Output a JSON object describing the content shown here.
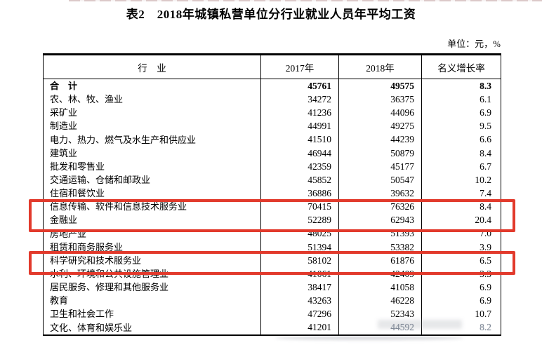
{
  "page": {
    "title": "表2　2018年城镇私营单位分行业就业人员年平均工资",
    "unit_label": "单位：元，%"
  },
  "table": {
    "columns": [
      "行　业",
      "2017年",
      "2018年",
      "名义增长率"
    ],
    "rows": [
      {
        "industry": "合　计",
        "y2017": "45761",
        "y2018": "49575",
        "growth": "8.3"
      },
      {
        "industry": "农、林、牧、渔业",
        "y2017": "34272",
        "y2018": "36375",
        "growth": "6.1"
      },
      {
        "industry": "采矿业",
        "y2017": "41236",
        "y2018": "44096",
        "growth": "6.9"
      },
      {
        "industry": "制造业",
        "y2017": "44991",
        "y2018": "49275",
        "growth": "9.5"
      },
      {
        "industry": "电力、热力、燃气及水生产和供应业",
        "y2017": "41510",
        "y2018": "44239",
        "growth": "6.6"
      },
      {
        "industry": "建筑业",
        "y2017": "46944",
        "y2018": "50879",
        "growth": "8.4"
      },
      {
        "industry": "批发和零售业",
        "y2017": "42359",
        "y2018": "45177",
        "growth": "6.7"
      },
      {
        "industry": "交通运输、仓储和邮政业",
        "y2017": "45852",
        "y2018": "50547",
        "growth": "10.2"
      },
      {
        "industry": "住宿和餐饮业",
        "y2017": "36886",
        "y2018": "39632",
        "growth": "7.4"
      },
      {
        "industry": "信息传输、软件和信息技术服务业",
        "y2017": "70415",
        "y2018": "76326",
        "growth": "8.4"
      },
      {
        "industry": "金融业",
        "y2017": "52289",
        "y2018": "62943",
        "growth": "20.4"
      },
      {
        "industry": "房地产业",
        "y2017": "48025",
        "y2018": "51393",
        "growth": "7.0"
      },
      {
        "industry": "租赁和商务服务业",
        "y2017": "51394",
        "y2018": "53382",
        "growth": "3.9"
      },
      {
        "industry": "科学研究和技术服务业",
        "y2017": "58102",
        "y2018": "61876",
        "growth": "6.5"
      },
      {
        "industry": "水利、环境和公共设施管理业",
        "y2017": "41061",
        "y2018": "42409",
        "growth": "3.3"
      },
      {
        "industry": "居民服务、修理和其他服务业",
        "y2017": "38417",
        "y2018": "41058",
        "growth": "6.9"
      },
      {
        "industry": "教育",
        "y2017": "43263",
        "y2018": "46228",
        "growth": "6.9"
      },
      {
        "industry": "卫生和社会工作",
        "y2017": "47296",
        "y2018": "52343",
        "growth": "10.7"
      },
      {
        "industry": "文化、体育和娱乐业",
        "y2017": "41201",
        "y2018": "44592",
        "growth": "8.2"
      }
    ]
  },
  "annotations": {
    "highlight_color": "#e23a2c",
    "highlighted_rows": [
      "信息传输、软件和信息技术服务业",
      "金融业",
      "科学研究和技术服务业"
    ]
  }
}
